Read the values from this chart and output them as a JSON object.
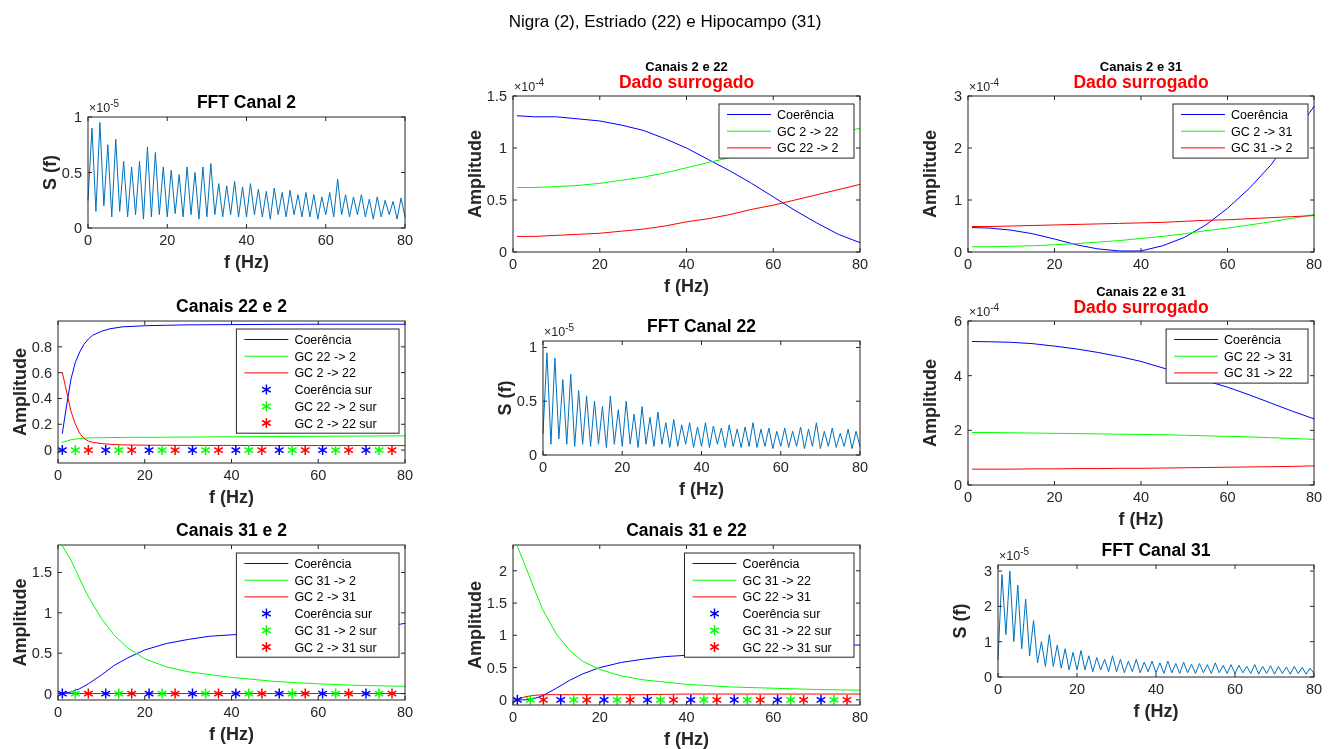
{
  "chart_data": [
    {
      "type": "line",
      "title": "FFT Canal 2",
      "xlabel": "f (Hz)",
      "ylabel": "S (f)",
      "annotations": [
        "×10$^{-5}$",
        "Nigra (2), Estriado (22) e Hipocampo (31)"
      ],
      "xlim": [
        0,
        80
      ],
      "xticks": [
        0,
        20,
        40,
        60,
        80
      ],
      "ylim": [
        0,
        1
      ],
      "yticks": [
        0,
        0.5,
        1
      ],
      "x": [
        0,
        1,
        2,
        3,
        4,
        5,
        6,
        7,
        8,
        9,
        10,
        11,
        12,
        13,
        14,
        15,
        16,
        17,
        18,
        19,
        20,
        21,
        22,
        23,
        24,
        25,
        26,
        27,
        28,
        29,
        30,
        31,
        32,
        33,
        34,
        35,
        36,
        37,
        38,
        39,
        40,
        41,
        42,
        43,
        44,
        45,
        46,
        47,
        48,
        49,
        50,
        51,
        52,
        53,
        54,
        55,
        56,
        57,
        58,
        59,
        60,
        61,
        62,
        63,
        64,
        65,
        66,
        67,
        68,
        69,
        70,
        71,
        72,
        73,
        74,
        75,
        76,
        77,
        78,
        79,
        80
      ],
      "series": [
        {
          "color": "#0072bd",
          "values": [
            0.25,
            0.9,
            0.15,
            0.95,
            0.2,
            0.75,
            0.1,
            0.8,
            0.15,
            0.6,
            0.1,
            0.55,
            0.12,
            0.6,
            0.08,
            0.73,
            0.1,
            0.68,
            0.12,
            0.55,
            0.1,
            0.52,
            0.13,
            0.48,
            0.1,
            0.55,
            0.12,
            0.5,
            0.08,
            0.55,
            0.1,
            0.58,
            0.12,
            0.4,
            0.1,
            0.38,
            0.12,
            0.42,
            0.1,
            0.37,
            0.1,
            0.4,
            0.12,
            0.35,
            0.1,
            0.33,
            0.08,
            0.36,
            0.12,
            0.32,
            0.1,
            0.34,
            0.12,
            0.3,
            0.1,
            0.32,
            0.1,
            0.3,
            0.08,
            0.28,
            0.12,
            0.32,
            0.1,
            0.44,
            0.12,
            0.3,
            0.1,
            0.28,
            0.12,
            0.3,
            0.1,
            0.26,
            0.08,
            0.28,
            0.1,
            0.25,
            0.12,
            0.24,
            0.08,
            0.27,
            0.1
          ]
        }
      ]
    },
    {
      "type": "line",
      "title": "Canais 2 e 22",
      "subtitle": "Dado surrogado",
      "xlabel": "f (Hz)",
      "ylabel": "Amplitude",
      "annotations": [
        "×10$^{-4}$"
      ],
      "xlim": [
        0,
        80
      ],
      "xticks": [
        0,
        20,
        40,
        60,
        80
      ],
      "ylim": [
        0,
        1.5
      ],
      "yticks": [
        0,
        0.5,
        1,
        1.5
      ],
      "legend": "top right",
      "x": [
        1,
        5,
        10,
        15,
        20,
        25,
        30,
        35,
        40,
        45,
        50,
        55,
        60,
        65,
        70,
        75,
        80
      ],
      "series": [
        {
          "name": "Coerência",
          "color": "#0000ff",
          "values": [
            1.31,
            1.3,
            1.3,
            1.28,
            1.26,
            1.22,
            1.17,
            1.09,
            1.0,
            0.89,
            0.78,
            0.66,
            0.53,
            0.4,
            0.28,
            0.17,
            0.09
          ]
        },
        {
          "name": "GC 2 -> 22",
          "color": "#00ff00",
          "x": [
            1,
            5,
            10,
            15,
            20,
            25,
            30,
            35,
            40,
            45,
            79,
            80
          ],
          "values": [
            0.62,
            0.62,
            0.63,
            0.64,
            0.66,
            0.69,
            0.72,
            0.76,
            0.81,
            0.86,
            1.18,
            1.19
          ]
        },
        {
          "name": "GC 22 -> 2",
          "color": "#ff0000",
          "values": [
            0.15,
            0.15,
            0.16,
            0.17,
            0.18,
            0.2,
            0.22,
            0.25,
            0.29,
            0.32,
            0.36,
            0.41,
            0.45,
            0.5,
            0.55,
            0.6,
            0.65
          ]
        }
      ]
    },
    {
      "type": "line",
      "title": "Canais 2 e 31",
      "subtitle": "Dado surrogado",
      "ylabel": "Amplitude",
      "annotations": [
        "×10$^{-4}$"
      ],
      "xlim": [
        0,
        80
      ],
      "xticks": [
        0,
        20,
        40,
        60,
        80
      ],
      "ylim": [
        0,
        3
      ],
      "yticks": [
        0,
        1,
        2,
        3
      ],
      "legend": "top right",
      "x": [
        1,
        5,
        10,
        15,
        20,
        25,
        30,
        35,
        40,
        45,
        50,
        55,
        60,
        65,
        70,
        75,
        80
      ],
      "series": [
        {
          "name": "Coerência",
          "color": "#0000ff",
          "x": [
            1,
            5,
            10,
            15,
            20,
            25,
            30,
            35,
            40,
            45,
            50,
            55,
            60,
            65,
            70,
            79,
            80
          ],
          "values": [
            0.47,
            0.46,
            0.42,
            0.35,
            0.25,
            0.14,
            0.06,
            0.02,
            0.02,
            0.12,
            0.28,
            0.52,
            0.84,
            1.22,
            1.67,
            2.68,
            2.8
          ]
        },
        {
          "name": "GC 2 -> 31",
          "color": "#00ff00",
          "values": [
            0.1,
            0.1,
            0.11,
            0.12,
            0.14,
            0.16,
            0.19,
            0.22,
            0.26,
            0.3,
            0.35,
            0.41,
            0.46,
            0.52,
            0.58,
            0.65,
            0.72
          ]
        },
        {
          "name": "GC 31 -> 2",
          "color": "#ff0000",
          "values": [
            0.49,
            0.49,
            0.5,
            0.51,
            0.52,
            0.53,
            0.54,
            0.55,
            0.56,
            0.57,
            0.59,
            0.61,
            0.62,
            0.64,
            0.66,
            0.68,
            0.7
          ]
        }
      ]
    },
    {
      "type": "line",
      "title": "Canais 22 e 2",
      "xlabel": "f (Hz)",
      "ylabel": "Amplitude",
      "xlim": [
        0,
        80
      ],
      "xticks": [
        0,
        20,
        40,
        60,
        80
      ],
      "ylim": [
        -0.1,
        1
      ],
      "yticks": [
        0,
        0.2,
        0.4,
        0.6,
        0.8
      ],
      "legend": "top right",
      "x": [
        1,
        2,
        3,
        4,
        5,
        6,
        7,
        8,
        10,
        12,
        15,
        20,
        25,
        30,
        40,
        50,
        60,
        70,
        80
      ],
      "series": [
        {
          "name": "Coerência",
          "color": "#0000ff",
          "values": [
            0.13,
            0.35,
            0.55,
            0.68,
            0.76,
            0.82,
            0.86,
            0.89,
            0.92,
            0.94,
            0.955,
            0.963,
            0.967,
            0.97,
            0.972,
            0.974,
            0.975,
            0.975,
            0.975
          ]
        },
        {
          "name": "GC 22 -> 2",
          "color": "#00ff00",
          "values": [
            0.06,
            0.07,
            0.08,
            0.085,
            0.09,
            0.092,
            0.094,
            0.095,
            0.096,
            0.097,
            0.098,
            0.099,
            0.1,
            0.101,
            0.103,
            0.105,
            0.107,
            0.109,
            0.11
          ]
        },
        {
          "name": "GC 2 -> 22",
          "color": "#ff0000",
          "values": [
            0.6,
            0.45,
            0.3,
            0.2,
            0.13,
            0.09,
            0.07,
            0.06,
            0.05,
            0.045,
            0.04,
            0.038,
            0.037,
            0.036,
            0.036,
            0.035,
            0.035,
            0.035,
            0.035
          ]
        },
        {
          "name": "Coerência sur",
          "type": "scatter",
          "marker": "cross",
          "color": "#0000ff",
          "x": [
            1,
            11,
            21,
            31,
            41,
            51,
            61,
            71
          ],
          "values": [
            0,
            0,
            0,
            0,
            0,
            0,
            0,
            0
          ]
        },
        {
          "name": "GC 22 -> 2 sur",
          "type": "scatter",
          "marker": "cross",
          "color": "#00ff00",
          "x": [
            4,
            14,
            24,
            34,
            44,
            54,
            64,
            74
          ],
          "values": [
            0,
            0,
            0,
            0,
            0,
            0,
            0,
            0
          ]
        },
        {
          "name": "GC 2 -> 22 sur",
          "type": "scatter",
          "marker": "cross",
          "color": "#ff0000",
          "x": [
            7,
            17,
            27,
            37,
            47,
            57,
            67,
            77
          ],
          "values": [
            0,
            0,
            0,
            0,
            0,
            0,
            0,
            0
          ]
        }
      ]
    },
    {
      "type": "line",
      "title": "FFT Canal 22",
      "xlabel": "f (Hz)",
      "ylabel": "S (f)",
      "annotations": [
        "×10$^{-5}$"
      ],
      "xlim": [
        0,
        80
      ],
      "xticks": [
        0,
        20,
        40,
        60,
        80
      ],
      "ylim": [
        0,
        1.06
      ],
      "yticks": [
        0,
        0.5,
        1
      ],
      "x": [
        0,
        1,
        2,
        3,
        4,
        5,
        6,
        7,
        8,
        9,
        10,
        11,
        12,
        13,
        14,
        15,
        16,
        17,
        18,
        19,
        20,
        21,
        22,
        23,
        24,
        25,
        26,
        27,
        28,
        29,
        30,
        31,
        32,
        33,
        34,
        35,
        36,
        37,
        38,
        39,
        40,
        41,
        42,
        43,
        44,
        45,
        46,
        47,
        48,
        49,
        50,
        51,
        52,
        53,
        54,
        55,
        56,
        57,
        58,
        59,
        60,
        61,
        62,
        63,
        64,
        65,
        66,
        67,
        68,
        69,
        70,
        71,
        72,
        73,
        74,
        75,
        76,
        77,
        78,
        79,
        80
      ],
      "series": [
        {
          "color": "#0072bd",
          "values": [
            0.2,
            0.95,
            0.1,
            0.9,
            0.15,
            0.7,
            0.1,
            0.75,
            0.08,
            0.6,
            0.1,
            0.55,
            0.08,
            0.5,
            0.1,
            0.45,
            0.07,
            0.55,
            0.1,
            0.42,
            0.08,
            0.5,
            0.1,
            0.38,
            0.07,
            0.45,
            0.1,
            0.35,
            0.08,
            0.4,
            0.1,
            0.3,
            0.07,
            0.33,
            0.08,
            0.28,
            0.1,
            0.3,
            0.07,
            0.26,
            0.08,
            0.3,
            0.07,
            0.27,
            0.1,
            0.25,
            0.07,
            0.28,
            0.08,
            0.24,
            0.07,
            0.26,
            0.08,
            0.3,
            0.07,
            0.24,
            0.08,
            0.25,
            0.06,
            0.22,
            0.08,
            0.25,
            0.07,
            0.22,
            0.08,
            0.26,
            0.06,
            0.24,
            0.08,
            0.3,
            0.06,
            0.22,
            0.08,
            0.25,
            0.07,
            0.2,
            0.08,
            0.24,
            0.06,
            0.22,
            0.08
          ]
        }
      ]
    },
    {
      "type": "line",
      "title": "Canais 22 e 31",
      "subtitle": "Dado surrogado",
      "xlabel": "f (Hz)",
      "ylabel": "Amplitude",
      "annotations": [
        "×10$^{-4}$"
      ],
      "xlim": [
        0,
        80
      ],
      "xticks": [
        0,
        20,
        40,
        60,
        80
      ],
      "ylim": [
        0,
        6
      ],
      "yticks": [
        0,
        2,
        4,
        6
      ],
      "legend": "top right",
      "x": [
        1,
        5,
        10,
        15,
        20,
        25,
        30,
        35,
        40,
        45,
        50,
        55,
        60,
        65,
        70,
        75,
        80
      ],
      "series": [
        {
          "name": "Coerência",
          "color": "#0000ff",
          "x": [
            1,
            5,
            10,
            15,
            20,
            25,
            30,
            35,
            40,
            60,
            65,
            70,
            75,
            80
          ],
          "values": [
            5.25,
            5.24,
            5.22,
            5.17,
            5.08,
            4.98,
            4.85,
            4.7,
            4.52,
            3.58,
            3.3,
            3.0,
            2.7,
            2.42
          ]
        },
        {
          "name": "GC 22 -> 31",
          "color": "#00ff00",
          "values": [
            1.92,
            1.92,
            1.91,
            1.9,
            1.89,
            1.88,
            1.87,
            1.86,
            1.85,
            1.84,
            1.82,
            1.8,
            1.78,
            1.76,
            1.73,
            1.7,
            1.67
          ]
        },
        {
          "name": "GC 31 -> 22",
          "color": "#ff0000",
          "values": [
            0.58,
            0.58,
            0.58,
            0.59,
            0.59,
            0.6,
            0.6,
            0.61,
            0.61,
            0.62,
            0.63,
            0.64,
            0.65,
            0.66,
            0.67,
            0.68,
            0.7
          ]
        }
      ]
    },
    {
      "type": "line",
      "title": "Canais 31 e 2",
      "xlabel": "f (Hz)",
      "ylabel": "Amplitude",
      "xlim": [
        0,
        80
      ],
      "xticks": [
        0,
        20,
        40,
        60,
        80
      ],
      "ylim": [
        -0.08,
        1.84
      ],
      "yticks": [
        0,
        0.5,
        1,
        1.5
      ],
      "legend": "top right",
      "x": [
        1,
        3,
        5,
        7,
        10,
        13,
        16,
        20,
        25,
        30,
        40,
        50,
        60,
        70,
        80
      ],
      "series": [
        {
          "name": "Coerência",
          "color": "#0000ff",
          "x": [
            1,
            3,
            5,
            7,
            10,
            13,
            16,
            20,
            25,
            30,
            35,
            79,
            80
          ],
          "values": [
            0,
            0.02,
            0.06,
            0.12,
            0.23,
            0.35,
            0.44,
            0.54,
            0.62,
            0.67,
            0.71,
            0.86,
            0.87
          ]
        },
        {
          "name": "GC 31 -> 2",
          "color": "#00ff00",
          "values": [
            1.83,
            1.65,
            1.42,
            1.2,
            0.93,
            0.72,
            0.57,
            0.43,
            0.33,
            0.27,
            0.2,
            0.15,
            0.12,
            0.1,
            0.09
          ]
        },
        {
          "name": "GC 2 -> 31",
          "color": "#ff0000",
          "values": [
            0,
            0,
            0,
            0,
            0,
            0,
            0,
            0,
            0,
            0,
            0,
            0,
            0,
            0,
            0
          ]
        },
        {
          "name": "Coerência sur",
          "type": "scatter",
          "marker": "cross",
          "color": "#0000ff",
          "x": [
            1,
            11,
            21,
            31,
            41,
            51,
            61,
            71
          ],
          "values": [
            0,
            0,
            0,
            0,
            0,
            0,
            0,
            0
          ]
        },
        {
          "name": "GC 31 -> 2 sur",
          "type": "scatter",
          "marker": "cross",
          "color": "#00ff00",
          "x": [
            4,
            14,
            24,
            34,
            44,
            54,
            64,
            74
          ],
          "values": [
            0,
            0,
            0,
            0,
            0,
            0,
            0,
            0
          ]
        },
        {
          "name": "GC 2 -> 31 sur",
          "type": "scatter",
          "marker": "cross",
          "color": "#ff0000",
          "x": [
            7,
            17,
            27,
            37,
            47,
            57,
            67,
            77
          ],
          "values": [
            0,
            0,
            0,
            0,
            0,
            0,
            0,
            0
          ]
        }
      ]
    },
    {
      "type": "line",
      "title": "Canais 31 e 22",
      "xlabel": "f (Hz)",
      "ylabel": "Amplitude",
      "xlim": [
        0,
        80
      ],
      "xticks": [
        0,
        20,
        40,
        60,
        80
      ],
      "ylim": [
        -0.08,
        2.4
      ],
      "yticks": [
        0,
        0.5,
        1,
        1.5,
        2
      ],
      "legend": "top right",
      "x": [
        1,
        3,
        5,
        7,
        10,
        13,
        16,
        20,
        25,
        30,
        40,
        50,
        60,
        70,
        80
      ],
      "series": [
        {
          "name": "Coerência",
          "color": "#0000ff",
          "x": [
            1,
            3,
            5,
            7,
            10,
            13,
            16,
            20,
            25,
            30,
            35,
            79,
            80
          ],
          "values": [
            0,
            0,
            0.02,
            0.07,
            0.18,
            0.3,
            0.4,
            0.5,
            0.58,
            0.63,
            0.67,
            0.85,
            0.85
          ]
        },
        {
          "name": "GC 31 -> 22",
          "color": "#00ff00",
          "values": [
            2.38,
            2.05,
            1.7,
            1.38,
            1.02,
            0.77,
            0.6,
            0.47,
            0.37,
            0.31,
            0.24,
            0.2,
            0.18,
            0.16,
            0.15
          ]
        },
        {
          "name": "GC 22 -> 31",
          "color": "#ff0000",
          "values": [
            0.01,
            0.05,
            0.07,
            0.08,
            0.08,
            0.08,
            0.08,
            0.08,
            0.08,
            0.08,
            0.09,
            0.09,
            0.09,
            0.09,
            0.09
          ]
        },
        {
          "name": "Coerência sur",
          "type": "scatter",
          "marker": "cross",
          "color": "#0000ff",
          "x": [
            1,
            11,
            21,
            31,
            41,
            51,
            61,
            71
          ],
          "values": [
            0,
            0,
            0,
            0,
            0,
            0,
            0,
            0
          ]
        },
        {
          "name": "GC 31 -> 22 sur",
          "type": "scatter",
          "marker": "cross",
          "color": "#00ff00",
          "x": [
            4,
            14,
            24,
            34,
            44,
            54,
            64,
            74
          ],
          "values": [
            0,
            0,
            0,
            0,
            0,
            0,
            0,
            0
          ]
        },
        {
          "name": "GC 22 -> 31 sur",
          "type": "scatter",
          "marker": "cross",
          "color": "#ff0000",
          "x": [
            7,
            17,
            27,
            37,
            47,
            57,
            67,
            77
          ],
          "values": [
            0,
            0,
            0,
            0,
            0,
            0,
            0,
            0
          ]
        }
      ]
    },
    {
      "type": "line",
      "title": "FFT Canal 31",
      "xlabel": "f (Hz)",
      "ylabel": "S (f)",
      "annotations": [
        "×10$^{-5}$"
      ],
      "xlim": [
        0,
        80
      ],
      "xticks": [
        0,
        20,
        40,
        60,
        80
      ],
      "ylim": [
        0,
        3.17
      ],
      "yticks": [
        0,
        1,
        2,
        3
      ],
      "x": [
        0,
        1,
        2,
        3,
        4,
        5,
        6,
        7,
        8,
        9,
        10,
        11,
        12,
        13,
        14,
        15,
        16,
        17,
        18,
        19,
        20,
        21,
        22,
        23,
        24,
        25,
        26,
        27,
        28,
        29,
        30,
        31,
        32,
        33,
        34,
        35,
        36,
        37,
        38,
        39,
        40,
        41,
        42,
        43,
        44,
        45,
        46,
        47,
        48,
        49,
        50,
        51,
        52,
        53,
        54,
        55,
        56,
        57,
        58,
        59,
        60,
        61,
        62,
        63,
        64,
        65,
        66,
        67,
        68,
        69,
        70,
        71,
        72,
        73,
        74,
        75,
        76,
        77,
        78,
        79,
        80
      ],
      "series": [
        {
          "color": "#0072bd",
          "values": [
            0.5,
            2.9,
            1.2,
            3.0,
            1.0,
            2.6,
            0.8,
            2.2,
            0.6,
            1.6,
            0.4,
            1.0,
            0.3,
            1.2,
            0.3,
            0.9,
            0.25,
            0.8,
            0.2,
            0.7,
            0.2,
            0.75,
            0.2,
            0.6,
            0.15,
            0.55,
            0.2,
            0.5,
            0.15,
            0.6,
            0.15,
            0.5,
            0.12,
            0.45,
            0.15,
            0.5,
            0.12,
            0.42,
            0.15,
            0.45,
            0.12,
            0.4,
            0.1,
            0.45,
            0.12,
            0.38,
            0.1,
            0.42,
            0.12,
            0.36,
            0.1,
            0.38,
            0.12,
            0.35,
            0.1,
            0.4,
            0.12,
            0.33,
            0.1,
            0.35,
            0.1,
            0.33,
            0.12,
            0.3,
            0.1,
            0.35,
            0.08,
            0.3,
            0.1,
            0.32,
            0.08,
            0.3,
            0.1,
            0.28,
            0.08,
            0.3,
            0.1,
            0.27,
            0.08,
            0.25,
            0.1
          ]
        }
      ]
    }
  ]
}
